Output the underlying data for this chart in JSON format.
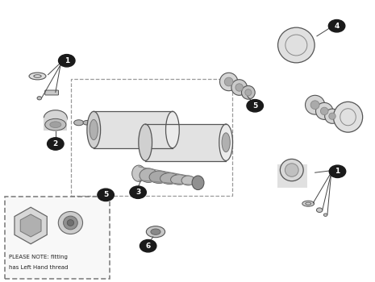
{
  "background_color": "#ffffff",
  "figure_width": 4.65,
  "figure_height": 3.5,
  "dpi": 100,
  "badge_color": "#1a1a1a",
  "badge_text_color": "#ffffff",
  "line_color": "#444444",
  "part_edge_color": "#555555",
  "note_text_line1": "PLEASE NOTE: fitting",
  "note_text_line2": "has Left Hand thread"
}
